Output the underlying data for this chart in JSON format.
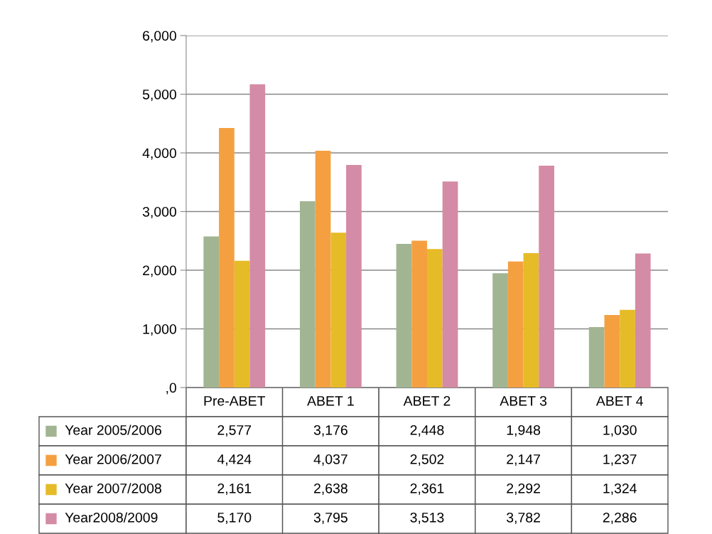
{
  "chart_data": {
    "type": "bar",
    "categories": [
      "Pre-ABET",
      "ABET 1",
      "ABET 2",
      "ABET 3",
      "ABET 4"
    ],
    "series": [
      {
        "name": "Year 2005/2006",
        "color": "#a2b593",
        "values": [
          2577,
          3176,
          2448,
          1948,
          1030
        ],
        "value_labels": [
          "2,577",
          "3,176",
          "2,448",
          "1,948",
          "1,030"
        ]
      },
      {
        "name": "Year 2006/2007",
        "color": "#f4a041",
        "values": [
          4424,
          4037,
          2502,
          2147,
          1237
        ],
        "value_labels": [
          "4,424",
          "4,037",
          "2,502",
          "2,147",
          "1,237"
        ]
      },
      {
        "name": "Year 2007/2008",
        "color": "#e6bb28",
        "values": [
          2161,
          2638,
          2361,
          2292,
          1324
        ],
        "value_labels": [
          "2,161",
          "2,638",
          "2,361",
          "2,292",
          "1,324"
        ]
      },
      {
        "name": "Year2008/2009",
        "color": "#d48ba5",
        "values": [
          5170,
          3795,
          3513,
          3782,
          2286
        ],
        "value_labels": [
          "5,170",
          "3,795",
          "3,513",
          "3,782",
          "2,286"
        ]
      }
    ],
    "ylim": [
      0,
      6000
    ],
    "yticks": [
      {
        "value": 0,
        "label": ",0"
      },
      {
        "value": 1000,
        "label": "1,000"
      },
      {
        "value": 2000,
        "label": "2,000"
      },
      {
        "value": 3000,
        "label": "3,000"
      },
      {
        "value": 4000,
        "label": "4,000"
      },
      {
        "value": 5000,
        "label": "5,000"
      },
      {
        "value": 6000,
        "label": "6,000"
      }
    ],
    "grid": "y",
    "legend": "bottom"
  }
}
